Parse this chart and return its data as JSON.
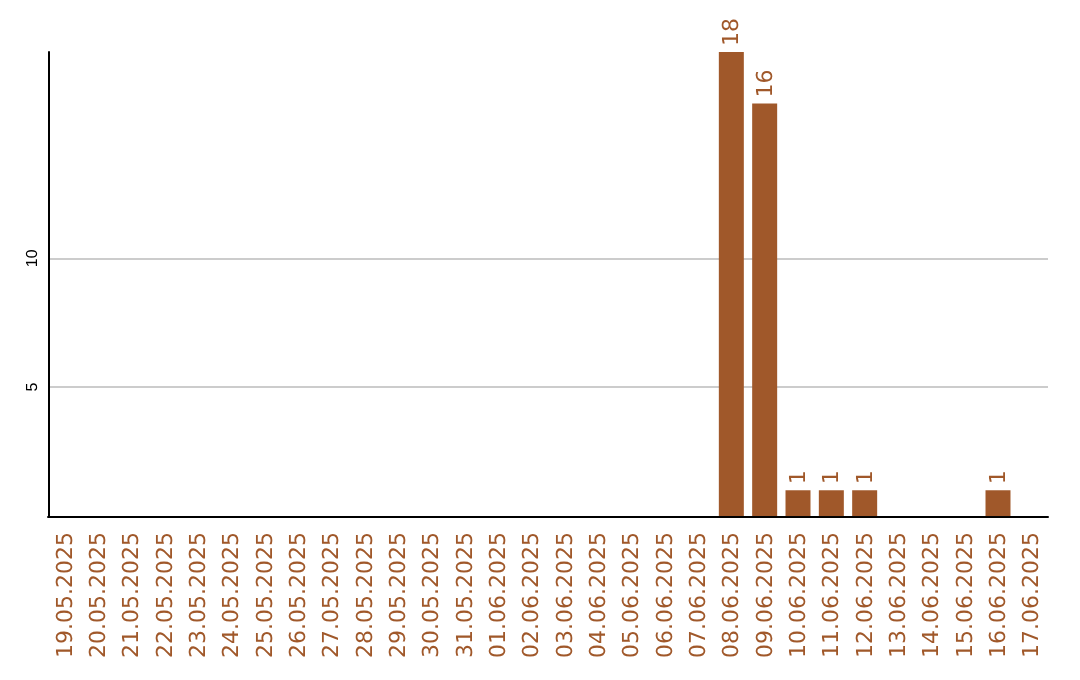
{
  "chart_data": {
    "type": "bar",
    "categories": [
      "19.05.2025",
      "20.05.2025",
      "21.05.2025",
      "22.05.2025",
      "23.05.2025",
      "24.05.2025",
      "25.05.2025",
      "26.05.2025",
      "27.05.2025",
      "28.05.2025",
      "29.05.2025",
      "30.05.2025",
      "31.05.2025",
      "01.06.2025",
      "02.06.2025",
      "03.06.2025",
      "04.06.2025",
      "05.06.2025",
      "06.06.2025",
      "07.06.2025",
      "08.06.2025",
      "09.06.2025",
      "10.06.2025",
      "11.06.2025",
      "12.06.2025",
      "13.06.2025",
      "14.06.2025",
      "15.06.2025",
      "16.06.2025",
      "17.06.2025"
    ],
    "values": [
      0,
      0,
      0,
      0,
      0,
      0,
      0,
      0,
      0,
      0,
      0,
      0,
      0,
      0,
      0,
      0,
      0,
      0,
      0,
      0,
      18,
      16,
      1,
      1,
      1,
      0,
      0,
      0,
      1,
      0
    ],
    "value_labels": [
      null,
      null,
      null,
      null,
      null,
      null,
      null,
      null,
      null,
      null,
      null,
      null,
      null,
      null,
      null,
      null,
      null,
      null,
      null,
      null,
      "18",
      "16",
      "1",
      "1",
      "1",
      null,
      null,
      null,
      "1",
      null
    ],
    "color": "#a0582a",
    "ylim": [
      0,
      18
    ],
    "yticks": [
      {
        "value": 0,
        "label": null
      },
      5,
      10
    ],
    "grid": "y"
  }
}
